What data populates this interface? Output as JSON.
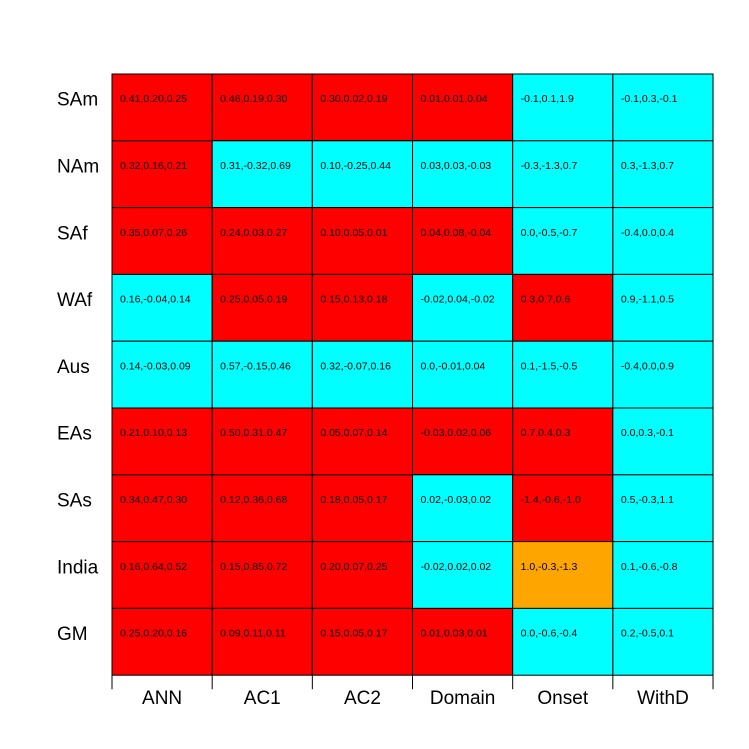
{
  "chart_data": {
    "type": "heatmap",
    "rows": [
      "SAm",
      "NAm",
      "SAf",
      "WAf",
      "Aus",
      "EAs",
      "SAs",
      "India",
      "GM"
    ],
    "columns": [
      "ANN",
      "AC1",
      "AC2",
      "Domain",
      "Onset",
      "WithD"
    ],
    "colors": {
      "red": "#ff0000",
      "cyan": "#00ffff",
      "orange": "#ffa500"
    },
    "cells": [
      [
        {
          "text": "0.41,0.20,0.25",
          "color": "red"
        },
        {
          "text": "0.46,0.19,0.30",
          "color": "red"
        },
        {
          "text": "0.30,0.02,0.19",
          "color": "red"
        },
        {
          "text": "0.01,0.01,0.04",
          "color": "red"
        },
        {
          "text": "-0.1,0.1,1.9",
          "color": "cyan"
        },
        {
          "text": "-0.1,0.3,-0.1",
          "color": "cyan"
        }
      ],
      [
        {
          "text": "0.32,0.16,0.21",
          "color": "red"
        },
        {
          "text": "0.31,-0.32,0.69",
          "color": "cyan"
        },
        {
          "text": "0.10,-0.25,0.44",
          "color": "cyan"
        },
        {
          "text": "0.03,0.03,-0.03",
          "color": "cyan"
        },
        {
          "text": "-0.3,-1.3,0.7",
          "color": "cyan"
        },
        {
          "text": "0.3,-1.3,0.7",
          "color": "cyan"
        }
      ],
      [
        {
          "text": "0.35,0.07,0.26",
          "color": "red"
        },
        {
          "text": "0.24,0.03,0.27",
          "color": "red"
        },
        {
          "text": "0.10,0.05,0.01",
          "color": "red"
        },
        {
          "text": "0.04,0.08,-0.04",
          "color": "red"
        },
        {
          "text": "0.0,-0.5,-0.7",
          "color": "cyan"
        },
        {
          "text": "-0.4,0.0,0.4",
          "color": "cyan"
        }
      ],
      [
        {
          "text": "0.16,-0.04,0.14",
          "color": "cyan"
        },
        {
          "text": "0.25,0.05,0.19",
          "color": "red"
        },
        {
          "text": "0.15,0.13,0.18",
          "color": "red"
        },
        {
          "text": "-0.02,0.04,-0.02",
          "color": "cyan"
        },
        {
          "text": "0.3,0.7,0.6",
          "color": "red"
        },
        {
          "text": "0.9,-1.1,0.5",
          "color": "cyan"
        }
      ],
      [
        {
          "text": "0.14,-0.03,0.09",
          "color": "cyan"
        },
        {
          "text": "0.57,-0.15,0.46",
          "color": "cyan"
        },
        {
          "text": "0.32,-0.07,0.16",
          "color": "cyan"
        },
        {
          "text": "0.0,-0.01,0.04",
          "color": "cyan"
        },
        {
          "text": "0.1,-1.5,-0.5",
          "color": "cyan"
        },
        {
          "text": "-0.4,0.0,0.9",
          "color": "cyan"
        }
      ],
      [
        {
          "text": "0.21,0.10,0.13",
          "color": "red"
        },
        {
          "text": "0.50,0.31,0.47",
          "color": "red"
        },
        {
          "text": "0.05,0.07,0.14",
          "color": "red"
        },
        {
          "text": "-0.03,0.02,0.06",
          "color": "red"
        },
        {
          "text": "0.7,0.4,0.3",
          "color": "red"
        },
        {
          "text": "0.0,0.3,-0.1",
          "color": "cyan"
        }
      ],
      [
        {
          "text": "0.34,0.47,0.30",
          "color": "red"
        },
        {
          "text": "0.12,0.36,0.68",
          "color": "red"
        },
        {
          "text": "0.18,0.05,0.17",
          "color": "red"
        },
        {
          "text": "0.02,-0.03,0.02",
          "color": "cyan"
        },
        {
          "text": "-1.4,-0.6,-1.0",
          "color": "red"
        },
        {
          "text": "0.5,-0.3,1.1",
          "color": "cyan"
        }
      ],
      [
        {
          "text": "0.16,0.64,0.52",
          "color": "red"
        },
        {
          "text": "0.15,0.85,0.72",
          "color": "red"
        },
        {
          "text": "0.20,0.07,0.25",
          "color": "red"
        },
        {
          "text": "-0.02,0.02,0.02",
          "color": "cyan"
        },
        {
          "text": "1.0,-0.3,-1.3",
          "color": "orange"
        },
        {
          "text": "0.1,-0.6,-0.8",
          "color": "cyan"
        }
      ],
      [
        {
          "text": "0.25,0.20,0.16",
          "color": "red"
        },
        {
          "text": "0.09,0.11,0.11",
          "color": "red"
        },
        {
          "text": "0.15,0.05,0.17",
          "color": "red"
        },
        {
          "text": "0.01,0.03,0.01",
          "color": "red"
        },
        {
          "text": "0.0,-0.6,-0.4",
          "color": "cyan"
        },
        {
          "text": "0.2,-0.5,0.1",
          "color": "cyan"
        }
      ]
    ],
    "grid": true,
    "legend": "none"
  }
}
